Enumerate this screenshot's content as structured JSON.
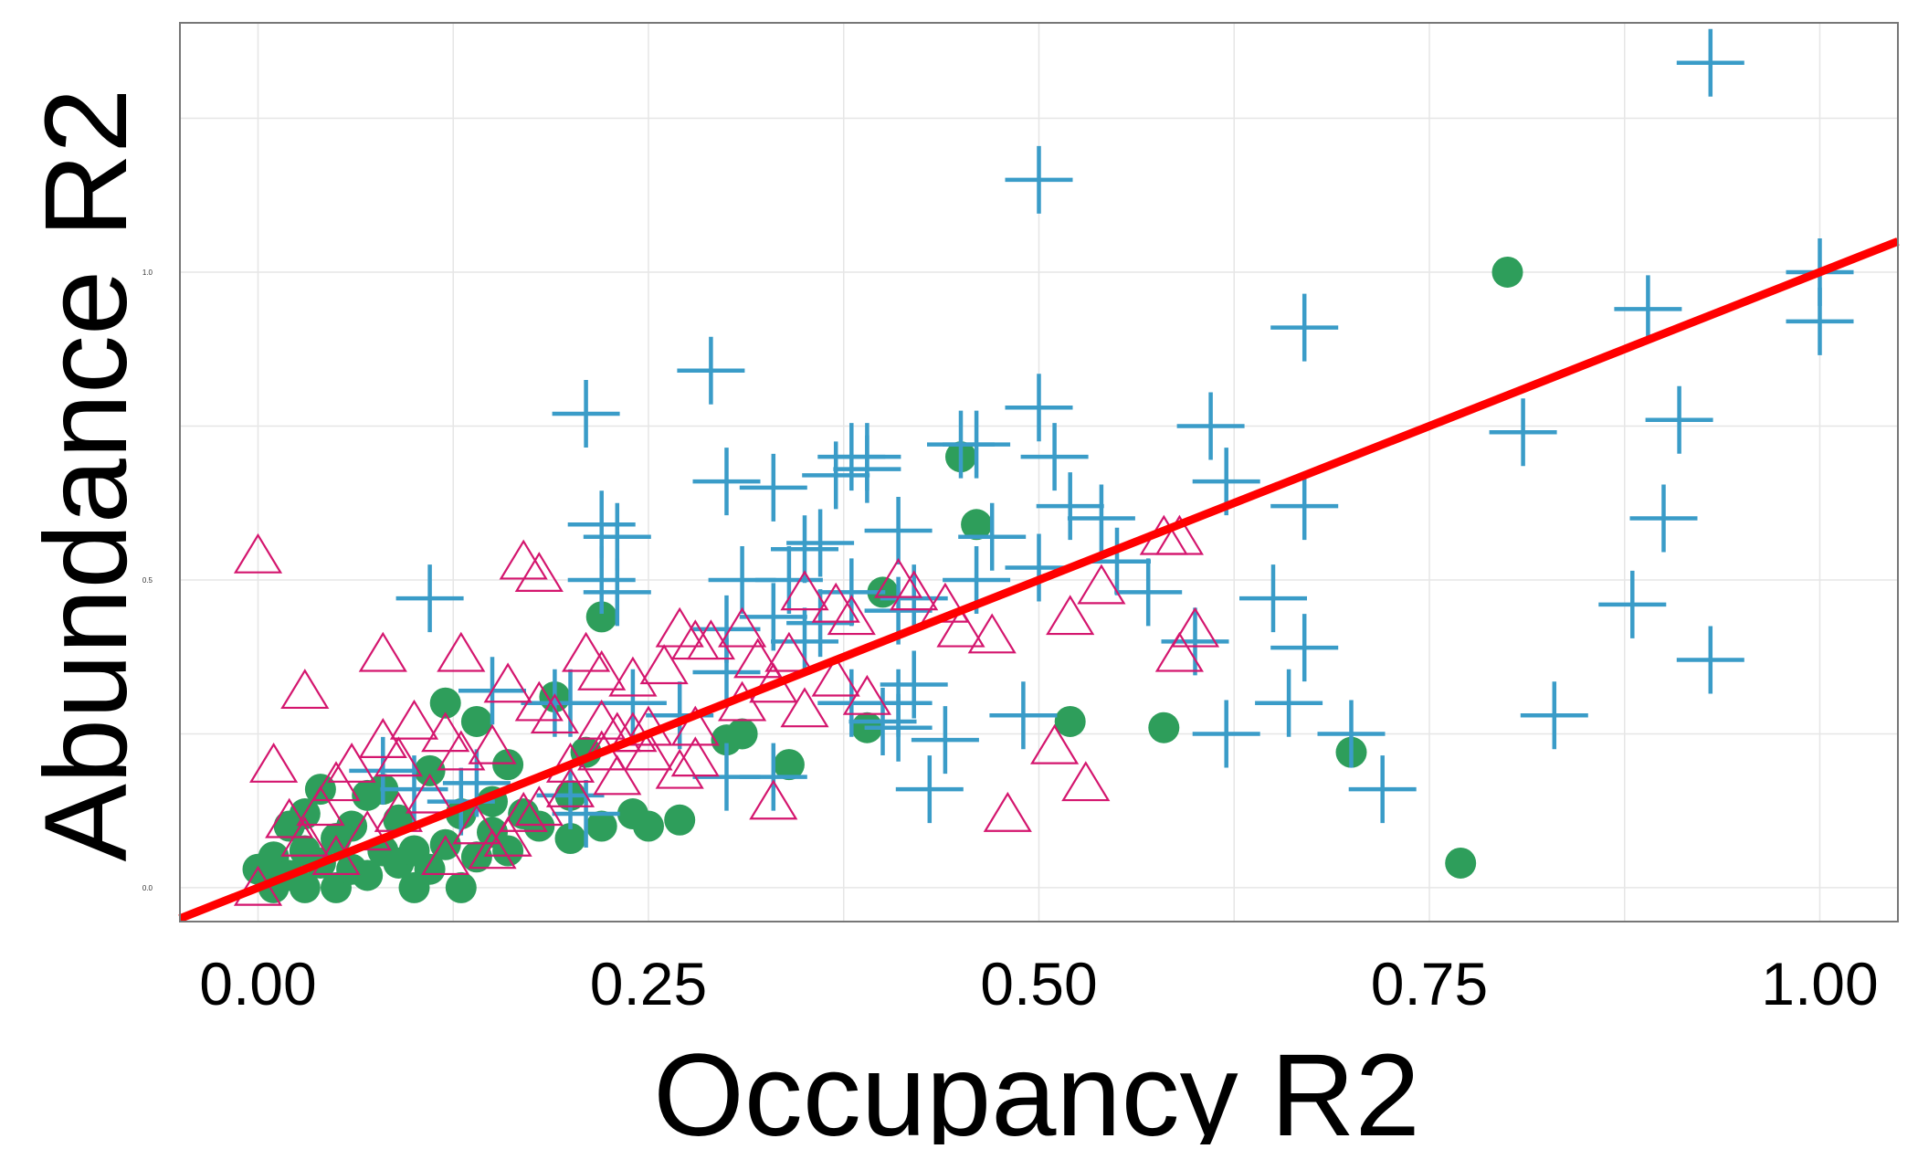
{
  "chart_data": {
    "type": "scatter",
    "title": "",
    "xlabel": "Occupancy R2",
    "ylabel": "Abundance R2",
    "xlim": [
      -0.05,
      1.05
    ],
    "ylim": [
      -0.055,
      1.405
    ],
    "x_ticks": [
      {
        "value": 0.0,
        "label": "0.00"
      },
      {
        "value": 0.25,
        "label": "0.25"
      },
      {
        "value": 0.5,
        "label": "0.50"
      },
      {
        "value": 0.75,
        "label": "0.75"
      },
      {
        "value": 1.0,
        "label": "1.00"
      }
    ],
    "y_ticks": [
      {
        "value": 0.0,
        "label": "0.0"
      },
      {
        "value": 0.5,
        "label": "0.5"
      },
      {
        "value": 1.0,
        "label": "1.0"
      }
    ],
    "grid": true,
    "legend": "none",
    "colors": {
      "circle_series": "#2e9e5b",
      "plus_series": "#3a9cc8",
      "triangle_series": "#d4166e",
      "reference_line": "#ff0000",
      "frame": "#777777",
      "grid": "#e6e6e6"
    },
    "reference_line": {
      "slope": 1,
      "intercept": 0
    },
    "series": [
      {
        "marker": "circle",
        "points": [
          [
            0.0,
            0.03
          ],
          [
            0.01,
            0.0
          ],
          [
            0.01,
            0.05
          ],
          [
            0.02,
            0.02
          ],
          [
            0.02,
            0.1
          ],
          [
            0.03,
            0.0
          ],
          [
            0.03,
            0.06
          ],
          [
            0.03,
            0.12
          ],
          [
            0.04,
            0.04
          ],
          [
            0.04,
            0.16
          ],
          [
            0.05,
            0.0
          ],
          [
            0.05,
            0.08
          ],
          [
            0.06,
            0.03
          ],
          [
            0.06,
            0.1
          ],
          [
            0.07,
            0.02
          ],
          [
            0.07,
            0.15
          ],
          [
            0.08,
            0.06
          ],
          [
            0.08,
            0.16
          ],
          [
            0.09,
            0.04
          ],
          [
            0.09,
            0.11
          ],
          [
            0.1,
            0.0
          ],
          [
            0.1,
            0.06
          ],
          [
            0.11,
            0.03
          ],
          [
            0.11,
            0.19
          ],
          [
            0.12,
            0.07
          ],
          [
            0.12,
            0.3
          ],
          [
            0.13,
            0.0
          ],
          [
            0.13,
            0.12
          ],
          [
            0.14,
            0.27
          ],
          [
            0.14,
            0.05
          ],
          [
            0.15,
            0.09
          ],
          [
            0.15,
            0.14
          ],
          [
            0.16,
            0.06
          ],
          [
            0.16,
            0.2
          ],
          [
            0.17,
            0.12
          ],
          [
            0.18,
            0.1
          ],
          [
            0.19,
            0.31
          ],
          [
            0.2,
            0.15
          ],
          [
            0.2,
            0.08
          ],
          [
            0.21,
            0.22
          ],
          [
            0.22,
            0.44
          ],
          [
            0.22,
            0.1
          ],
          [
            0.24,
            0.12
          ],
          [
            0.25,
            0.1
          ],
          [
            0.27,
            0.11
          ],
          [
            0.3,
            0.24
          ],
          [
            0.31,
            0.25
          ],
          [
            0.34,
            0.2
          ],
          [
            0.39,
            0.26
          ],
          [
            0.4,
            0.48
          ],
          [
            0.45,
            0.7
          ],
          [
            0.46,
            0.59
          ],
          [
            0.52,
            0.27
          ],
          [
            0.58,
            0.26
          ],
          [
            0.7,
            0.22
          ],
          [
            0.77,
            0.04
          ],
          [
            0.8,
            1.0
          ]
        ]
      },
      {
        "marker": "plus",
        "points": [
          [
            0.93,
            1.34
          ],
          [
            0.5,
            1.15
          ],
          [
            0.29,
            0.84
          ],
          [
            0.21,
            0.77
          ],
          [
            0.5,
            0.78
          ],
          [
            0.67,
            0.91
          ],
          [
            1.0,
            1.0
          ],
          [
            1.0,
            0.92
          ],
          [
            0.89,
            0.94
          ],
          [
            0.81,
            0.74
          ],
          [
            0.91,
            0.76
          ],
          [
            0.61,
            0.75
          ],
          [
            0.9,
            0.6
          ],
          [
            0.88,
            0.46
          ],
          [
            0.93,
            0.37
          ],
          [
            0.83,
            0.28
          ],
          [
            0.45,
            0.72
          ],
          [
            0.46,
            0.72
          ],
          [
            0.38,
            0.7
          ],
          [
            0.39,
            0.7
          ],
          [
            0.39,
            0.68
          ],
          [
            0.37,
            0.67
          ],
          [
            0.3,
            0.66
          ],
          [
            0.33,
            0.65
          ],
          [
            0.51,
            0.7
          ],
          [
            0.62,
            0.66
          ],
          [
            0.67,
            0.62
          ],
          [
            0.52,
            0.62
          ],
          [
            0.54,
            0.6
          ],
          [
            0.22,
            0.59
          ],
          [
            0.23,
            0.57
          ],
          [
            0.41,
            0.58
          ],
          [
            0.36,
            0.56
          ],
          [
            0.35,
            0.55
          ],
          [
            0.47,
            0.57
          ],
          [
            0.55,
            0.53
          ],
          [
            0.22,
            0.5
          ],
          [
            0.23,
            0.48
          ],
          [
            0.31,
            0.5
          ],
          [
            0.34,
            0.5
          ],
          [
            0.38,
            0.48
          ],
          [
            0.42,
            0.47
          ],
          [
            0.46,
            0.5
          ],
          [
            0.5,
            0.52
          ],
          [
            0.57,
            0.48
          ],
          [
            0.65,
            0.47
          ],
          [
            0.11,
            0.47
          ],
          [
            0.33,
            0.44
          ],
          [
            0.36,
            0.43
          ],
          [
            0.41,
            0.45
          ],
          [
            0.3,
            0.42
          ],
          [
            0.35,
            0.4
          ],
          [
            0.6,
            0.4
          ],
          [
            0.67,
            0.39
          ],
          [
            0.15,
            0.32
          ],
          [
            0.19,
            0.3
          ],
          [
            0.2,
            0.3
          ],
          [
            0.27,
            0.28
          ],
          [
            0.38,
            0.3
          ],
          [
            0.42,
            0.33
          ],
          [
            0.41,
            0.3
          ],
          [
            0.44,
            0.24
          ],
          [
            0.49,
            0.28
          ],
          [
            0.62,
            0.25
          ],
          [
            0.66,
            0.3
          ],
          [
            0.7,
            0.25
          ],
          [
            0.72,
            0.16
          ],
          [
            0.43,
            0.16
          ],
          [
            0.3,
            0.18
          ],
          [
            0.33,
            0.18
          ],
          [
            0.14,
            0.17
          ],
          [
            0.2,
            0.15
          ],
          [
            0.21,
            0.12
          ],
          [
            0.13,
            0.14
          ],
          [
            0.08,
            0.19
          ],
          [
            0.1,
            0.16
          ],
          [
            0.4,
            0.27
          ],
          [
            0.41,
            0.26
          ],
          [
            0.3,
            0.35
          ],
          [
            0.24,
            0.3
          ]
        ]
      },
      {
        "marker": "triangle",
        "points": [
          [
            0.0,
            0.54
          ],
          [
            0.17,
            0.53
          ],
          [
            0.18,
            0.51
          ],
          [
            0.03,
            0.32
          ],
          [
            0.08,
            0.38
          ],
          [
            0.13,
            0.38
          ],
          [
            0.21,
            0.38
          ],
          [
            0.22,
            0.35
          ],
          [
            0.24,
            0.34
          ],
          [
            0.26,
            0.36
          ],
          [
            0.28,
            0.4
          ],
          [
            0.27,
            0.42
          ],
          [
            0.29,
            0.4
          ],
          [
            0.31,
            0.42
          ],
          [
            0.32,
            0.37
          ],
          [
            0.34,
            0.38
          ],
          [
            0.35,
            0.48
          ],
          [
            0.37,
            0.46
          ],
          [
            0.38,
            0.44
          ],
          [
            0.41,
            0.5
          ],
          [
            0.42,
            0.48
          ],
          [
            0.44,
            0.46
          ],
          [
            0.52,
            0.44
          ],
          [
            0.54,
            0.49
          ],
          [
            0.58,
            0.57
          ],
          [
            0.59,
            0.57
          ],
          [
            0.6,
            0.42
          ],
          [
            0.59,
            0.38
          ],
          [
            0.48,
            0.12
          ],
          [
            0.53,
            0.17
          ],
          [
            0.51,
            0.23
          ],
          [
            0.33,
            0.14
          ],
          [
            0.27,
            0.19
          ],
          [
            0.28,
            0.21
          ],
          [
            0.22,
            0.27
          ],
          [
            0.23,
            0.25
          ],
          [
            0.25,
            0.26
          ],
          [
            0.19,
            0.28
          ],
          [
            0.18,
            0.3
          ],
          [
            0.16,
            0.33
          ],
          [
            0.15,
            0.23
          ],
          [
            0.13,
            0.22
          ],
          [
            0.12,
            0.25
          ],
          [
            0.1,
            0.27
          ],
          [
            0.09,
            0.21
          ],
          [
            0.08,
            0.24
          ],
          [
            0.06,
            0.2
          ],
          [
            0.05,
            0.17
          ],
          [
            0.04,
            0.13
          ],
          [
            0.02,
            0.11
          ],
          [
            0.01,
            0.2
          ],
          [
            0.03,
            0.08
          ],
          [
            0.0,
            0.0
          ],
          [
            0.05,
            0.05
          ],
          [
            0.07,
            0.09
          ],
          [
            0.09,
            0.12
          ],
          [
            0.11,
            0.15
          ],
          [
            0.14,
            0.1
          ],
          [
            0.16,
            0.08
          ],
          [
            0.18,
            0.13
          ],
          [
            0.2,
            0.16
          ],
          [
            0.23,
            0.18
          ],
          [
            0.25,
            0.22
          ],
          [
            0.28,
            0.26
          ],
          [
            0.31,
            0.3
          ],
          [
            0.33,
            0.33
          ],
          [
            0.35,
            0.29
          ],
          [
            0.37,
            0.34
          ],
          [
            0.39,
            0.31
          ],
          [
            0.45,
            0.42
          ],
          [
            0.47,
            0.41
          ],
          [
            0.12,
            0.05
          ],
          [
            0.15,
            0.06
          ],
          [
            0.17,
            0.12
          ],
          [
            0.2,
            0.2
          ],
          [
            0.22,
            0.22
          ],
          [
            0.24,
            0.25
          ]
        ]
      }
    ]
  }
}
